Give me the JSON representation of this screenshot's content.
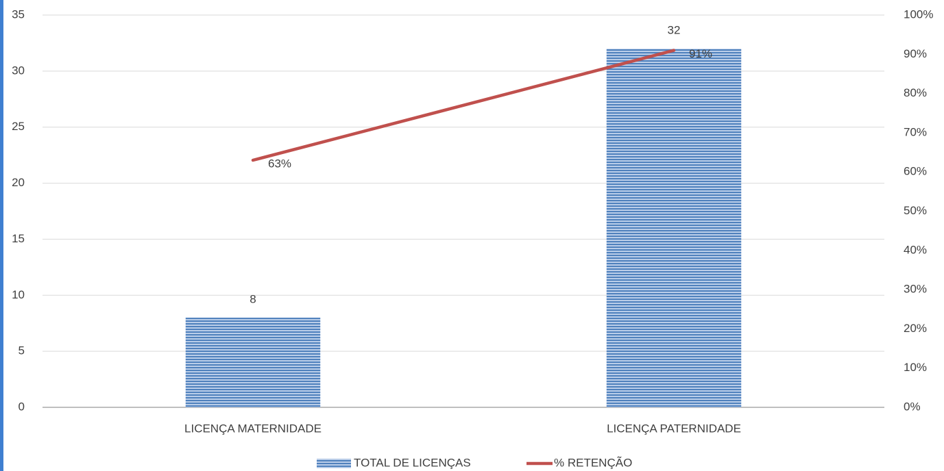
{
  "chart_data": {
    "type": "bar",
    "categories": [
      "LICENÇA MATERNIDADE",
      "LICENÇA PATERNIDADE"
    ],
    "series": [
      {
        "name": "TOTAL DE LICENÇAS",
        "color": "#4f81bd",
        "values": [
          8,
          32
        ]
      },
      {
        "name": "% RETENÇÃO",
        "type": "line",
        "axis": "y2",
        "color": "#c0504d",
        "values": [
          63,
          91
        ],
        "value_labels": [
          "63%",
          "91%"
        ]
      }
    ],
    "ylim": [
      0,
      35
    ],
    "yticks": [
      0,
      5,
      10,
      15,
      20,
      25,
      30,
      35
    ],
    "y2lim": [
      0,
      100
    ],
    "y2ticks": [
      {
        "value": 0,
        "label": "0%"
      },
      {
        "value": 10,
        "label": "10%"
      },
      {
        "value": 20,
        "label": "20%"
      },
      {
        "value": 30,
        "label": "30%"
      },
      {
        "value": 40,
        "label": "40%"
      },
      {
        "value": 50,
        "label": "50%"
      },
      {
        "value": 60,
        "label": "60%"
      },
      {
        "value": 70,
        "label": "70%"
      },
      {
        "value": 80,
        "label": "80%"
      },
      {
        "value": 90,
        "label": "90%"
      },
      {
        "value": 100,
        "label": "100%"
      }
    ],
    "grid": true,
    "legend": "bottom"
  }
}
